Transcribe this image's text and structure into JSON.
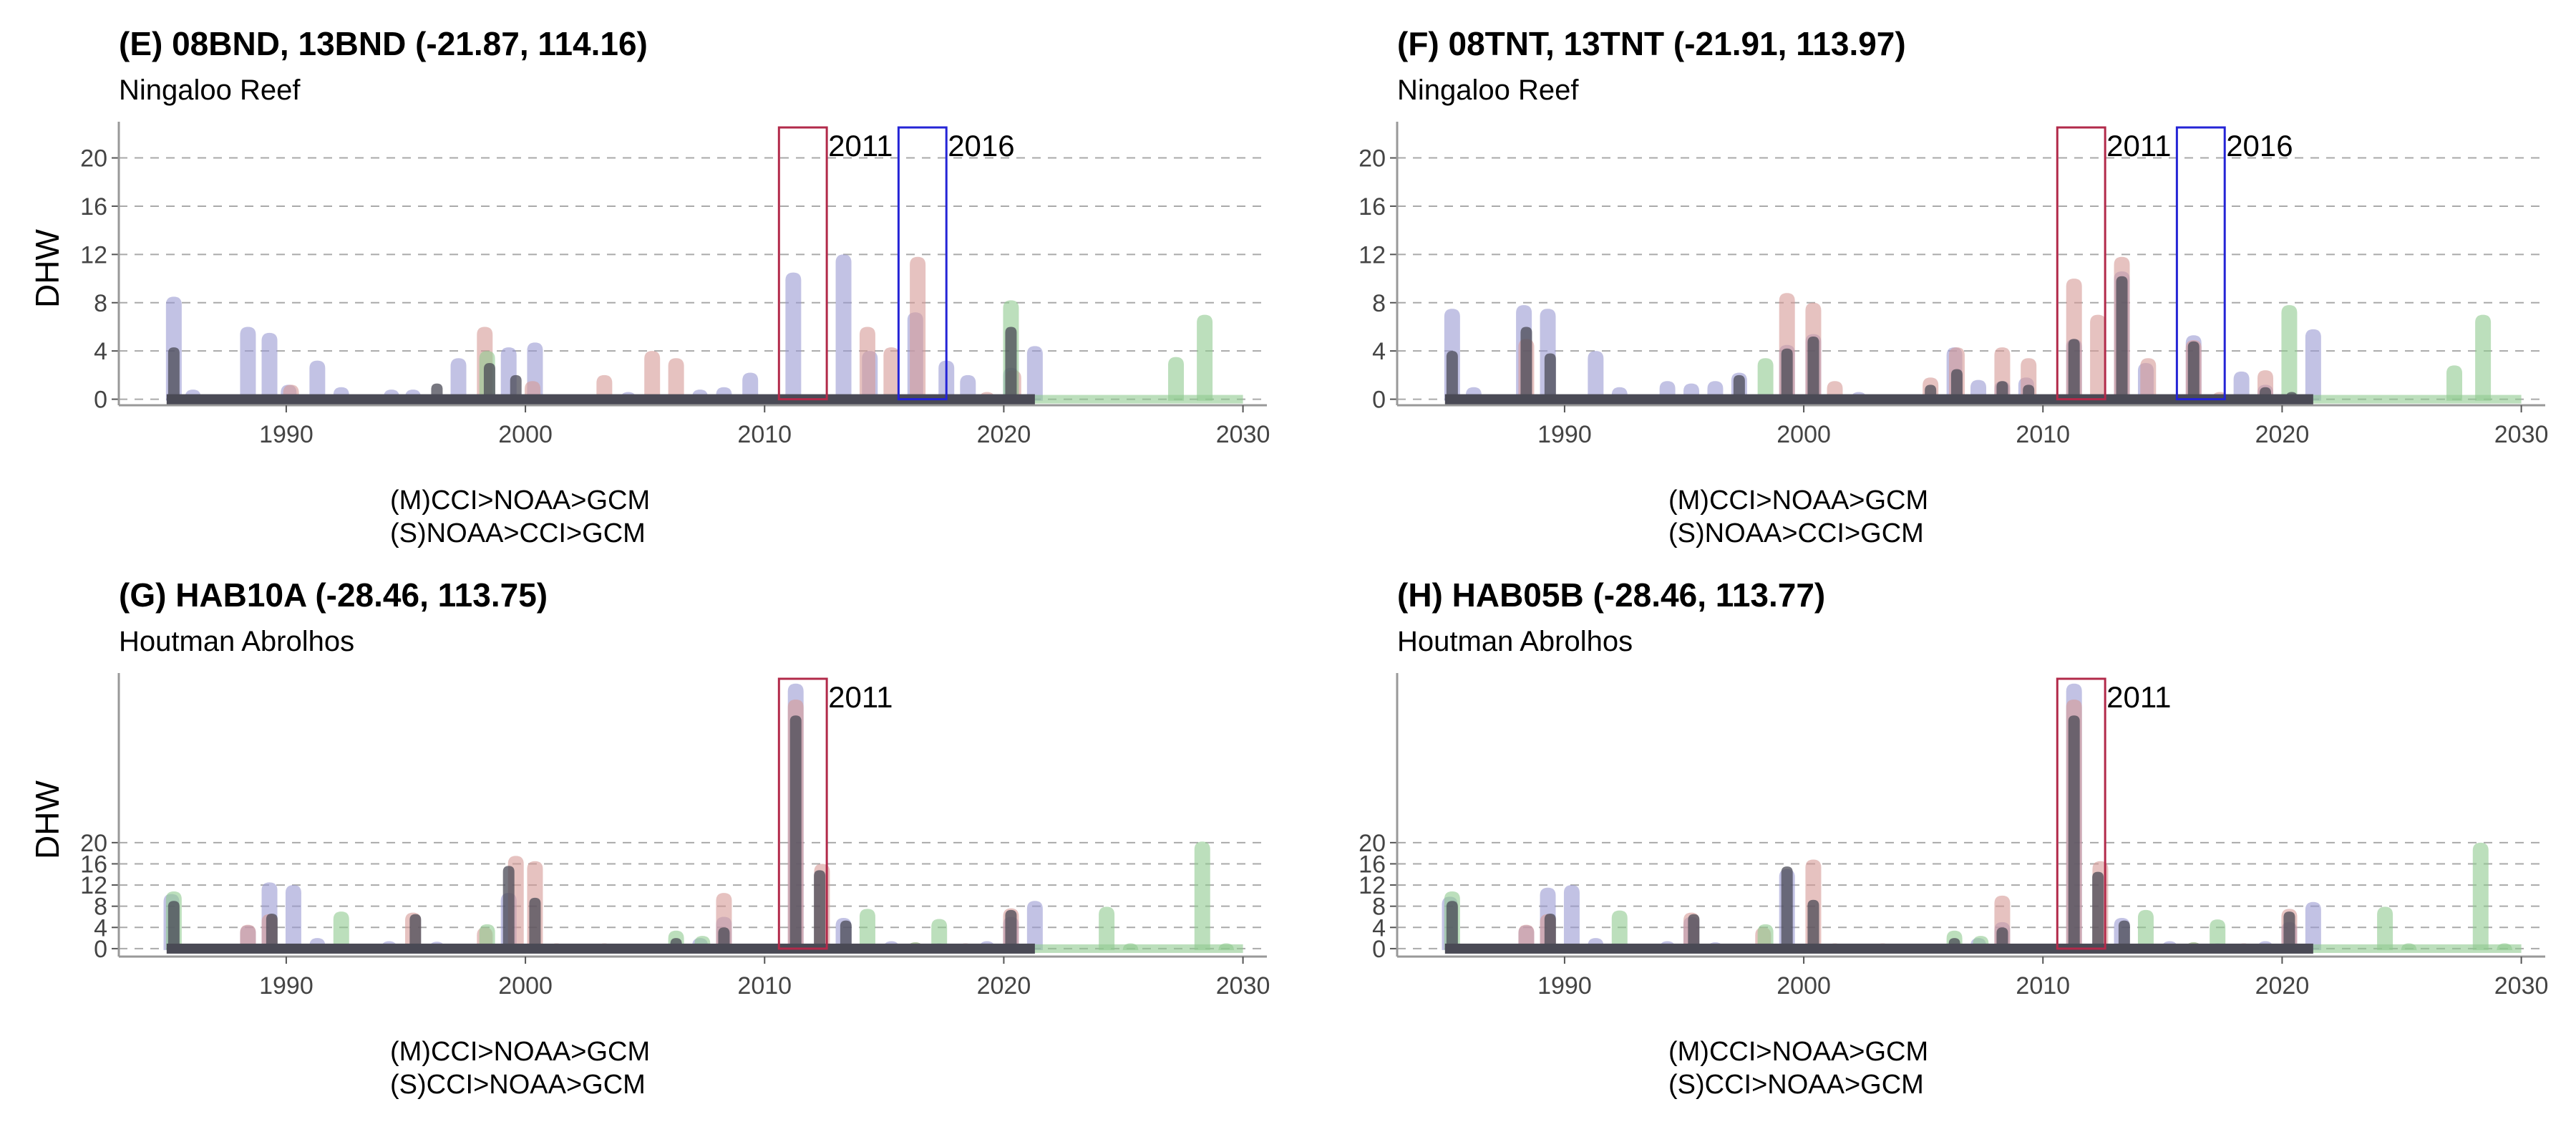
{
  "colors": {
    "cci": "#9a9ad2",
    "noaa": "#d69a96",
    "gcm": "#8fc98f",
    "core": "#4a4a55",
    "box2011": "#b22a4a",
    "box2016": "#2424d6",
    "grid": "#aaaaaa"
  },
  "chart_data": [
    {
      "panel": "E",
      "type": "area",
      "title": "(E) 08BND, 13BND (-21.87, 114.16)",
      "subtitle": "Ningaloo Reef",
      "ylabel": "DHW",
      "caption": [
        "(M)CCI>NOAA>GCM",
        "(S)NOAA>CCI>GCM"
      ],
      "xlim": [
        1983,
        2031
      ],
      "ylim": [
        -0.5,
        23
      ],
      "yticks": [
        0,
        4,
        8,
        12,
        16,
        20
      ],
      "xticks": [
        1990,
        2000,
        2010,
        2020,
        2030
      ],
      "highlights": [
        {
          "label": "2011",
          "start": 2010.6,
          "end": 2012.6,
          "color": "box2011"
        },
        {
          "label": "2016",
          "start": 2015.6,
          "end": 2017.6,
          "color": "box2016"
        }
      ],
      "series": [
        {
          "color": "cci",
          "values": [
            [
              1985.3,
              8.5
            ],
            [
              1986.1,
              0.8
            ],
            [
              1988.4,
              6
            ],
            [
              1989.3,
              5.5
            ],
            [
              1990.1,
              1.2
            ],
            [
              1991.3,
              3.2
            ],
            [
              1992.3,
              1
            ],
            [
              1994.4,
              0.8
            ],
            [
              1995.3,
              0.8
            ],
            [
              1997.2,
              3.4
            ],
            [
              1999.3,
              4.3
            ],
            [
              2000.4,
              4.7
            ],
            [
              2004.3,
              0.6
            ],
            [
              2007.3,
              0.8
            ],
            [
              2008.3,
              1
            ],
            [
              2009.4,
              2.2
            ],
            [
              2011.2,
              10.5
            ],
            [
              2013.3,
              12
            ],
            [
              2014.4,
              4
            ],
            [
              2016.3,
              7.2
            ],
            [
              2017.6,
              3.2
            ],
            [
              2018.5,
              2
            ],
            [
              2020.3,
              2.6
            ],
            [
              2021.3,
              4.4
            ]
          ]
        },
        {
          "color": "noaa",
          "values": [
            [
              1990.2,
              1.2
            ],
            [
              1998.3,
              6
            ],
            [
              2000.3,
              1.5
            ],
            [
              2003.3,
              2
            ],
            [
              2005.3,
              4
            ],
            [
              2006.3,
              3.4
            ],
            [
              2014.3,
              6
            ],
            [
              2015.3,
              4.3
            ],
            [
              2016.4,
              11.8
            ],
            [
              2019.3,
              0.6
            ],
            [
              2020.4,
              2.4
            ]
          ]
        },
        {
          "color": "gcm",
          "values": [
            [
              1998.4,
              4
            ],
            [
              2020.3,
              8.2
            ],
            [
              2027.2,
              3.5
            ],
            [
              2028.4,
              7
            ]
          ],
          "baseline_from": 2020.8
        },
        {
          "color": "core",
          "values": [
            [
              1985.3,
              4.3
            ],
            [
              1996.3,
              1.3
            ],
            [
              1998.5,
              3
            ],
            [
              1999.6,
              2
            ],
            [
              2020.3,
              6
            ]
          ]
        }
      ]
    },
    {
      "panel": "F",
      "type": "area",
      "title": "(F) 08TNT, 13TNT (-21.91, 113.97)",
      "subtitle": "Ningaloo Reef",
      "ylabel": "",
      "caption": [
        "(M)CCI>NOAA>GCM",
        "(S)NOAA>CCI>GCM"
      ],
      "xlim": [
        1983,
        2031
      ],
      "ylim": [
        -0.5,
        23
      ],
      "yticks": [
        0,
        4,
        8,
        12,
        16,
        20
      ],
      "xticks": [
        1990,
        2000,
        2010,
        2020,
        2030
      ],
      "highlights": [
        {
          "label": "2011",
          "start": 2010.6,
          "end": 2012.6,
          "color": "box2011"
        },
        {
          "label": "2016",
          "start": 2015.6,
          "end": 2017.6,
          "color": "box2016"
        }
      ],
      "series": [
        {
          "color": "cci",
          "values": [
            [
              1985.3,
              7.5
            ],
            [
              1986.2,
              1
            ],
            [
              1988.3,
              7.8
            ],
            [
              1989.3,
              7.5
            ],
            [
              1991.3,
              4
            ],
            [
              1992.3,
              1
            ],
            [
              1994.3,
              1.5
            ],
            [
              1995.3,
              1.3
            ],
            [
              1996.3,
              1.5
            ],
            [
              1997.3,
              2.2
            ],
            [
              1999.3,
              4.5
            ],
            [
              2000.4,
              5.4
            ],
            [
              2002.3,
              0.6
            ],
            [
              2006.3,
              4.3
            ],
            [
              2007.3,
              1.6
            ],
            [
              2008.3,
              1.5
            ],
            [
              2009.3,
              1.8
            ],
            [
              2011.3,
              5
            ],
            [
              2013.3,
              10.6
            ],
            [
              2014.3,
              3
            ],
            [
              2016.3,
              5.3
            ],
            [
              2018.3,
              2.3
            ],
            [
              2019.3,
              1.2
            ],
            [
              2021.3,
              5.8
            ]
          ]
        },
        {
          "color": "noaa",
          "values": [
            [
              1988.4,
              5
            ],
            [
              1999.3,
              8.8
            ],
            [
              2000.4,
              8
            ],
            [
              2001.3,
              1.5
            ],
            [
              2005.3,
              1.8
            ],
            [
              2006.4,
              4.3
            ],
            [
              2008.3,
              4.3
            ],
            [
              2009.4,
              3.4
            ],
            [
              2011.3,
              10
            ],
            [
              2012.3,
              7
            ],
            [
              2013.3,
              11.8
            ],
            [
              2014.4,
              3.4
            ],
            [
              2016.3,
              4.9
            ],
            [
              2017.4,
              0.6
            ],
            [
              2019.3,
              2.4
            ]
          ]
        },
        {
          "color": "gcm",
          "values": [
            [
              1998.4,
              3.4
            ],
            [
              2020.3,
              7.8
            ],
            [
              2027.2,
              2.8
            ],
            [
              2028.4,
              7
            ]
          ],
          "baseline_from": 2021
        },
        {
          "color": "core",
          "values": [
            [
              1985.3,
              4
            ],
            [
              1988.4,
              6
            ],
            [
              1989.4,
              3.8
            ],
            [
              1997.3,
              2
            ],
            [
              1999.3,
              4.2
            ],
            [
              2000.4,
              5.2
            ],
            [
              2005.3,
              1.2
            ],
            [
              2006.4,
              2.5
            ],
            [
              2008.3,
              1.5
            ],
            [
              2009.4,
              1.2
            ],
            [
              2011.3,
              5
            ],
            [
              2013.3,
              10.2
            ],
            [
              2016.3,
              4.8
            ],
            [
              2019.3,
              1
            ],
            [
              2020.4,
              0.6
            ]
          ]
        }
      ]
    },
    {
      "panel": "G",
      "type": "area",
      "title": "(G) HAB10A (-28.46, 113.75)",
      "subtitle": "Houtman Abrolhos",
      "ylabel": "DHW",
      "caption": [
        "(M)CCI>NOAA>GCM",
        "(S)CCI>NOAA>GCM"
      ],
      "xlim": [
        1983,
        2031
      ],
      "ylim": [
        -1.5,
        52
      ],
      "yticks": [
        0,
        4,
        8,
        12,
        16,
        20
      ],
      "xticks": [
        1990,
        2000,
        2010,
        2020,
        2030
      ],
      "highlights": [
        {
          "label": "2011",
          "start": 2010.6,
          "end": 2012.6,
          "color": "box2011"
        }
      ],
      "series": [
        {
          "color": "cci",
          "values": [
            [
              1985.2,
              10.3
            ],
            [
              1988.4,
              4.4
            ],
            [
              1989.3,
              12.5
            ],
            [
              1990.3,
              12
            ],
            [
              1991.3,
              2
            ],
            [
              1994.3,
              1.4
            ],
            [
              1996.3,
              1.3
            ],
            [
              1999.3,
              10.5
            ],
            [
              2005.3,
              0.5
            ],
            [
              2007.3,
              2
            ],
            [
              2008.3,
              6
            ],
            [
              2011.3,
              50
            ],
            [
              2013.3,
              5.8
            ],
            [
              2015.3,
              1.4
            ],
            [
              2017.3,
              1
            ],
            [
              2019.3,
              1.4
            ],
            [
              2020.3,
              6
            ],
            [
              2021.3,
              9
            ]
          ]
        },
        {
          "color": "noaa",
          "values": [
            [
              1988.4,
              4.5
            ],
            [
              1989.3,
              6.5
            ],
            [
              1995.3,
              6.8
            ],
            [
              1998.3,
              4
            ],
            [
              1999.6,
              17.5
            ],
            [
              2000.4,
              16.5
            ],
            [
              2001.3,
              1
            ],
            [
              2003.3,
              1
            ],
            [
              2008.3,
              10.5
            ],
            [
              2011.3,
              47
            ],
            [
              2012.4,
              16
            ],
            [
              2016.3,
              1.2
            ],
            [
              2018.4,
              1
            ],
            [
              2020.3,
              7.6
            ]
          ]
        },
        {
          "color": "gcm",
          "values": [
            [
              1985.3,
              10.8
            ],
            [
              1992.3,
              7
            ],
            [
              1998.4,
              4.6
            ],
            [
              2006.3,
              3.4
            ],
            [
              2007.4,
              2.4
            ],
            [
              2014.3,
              7.5
            ],
            [
              2016.3,
              1.2
            ],
            [
              2017.3,
              5.6
            ],
            [
              2024.3,
              7.9
            ],
            [
              2025.3,
              1
            ],
            [
              2028.3,
              20.2
            ],
            [
              2029.3,
              1
            ]
          ],
          "baseline_from": 2021
        },
        {
          "color": "core",
          "values": [
            [
              1985.3,
              9
            ],
            [
              1989.4,
              6.6
            ],
            [
              1995.4,
              6.5
            ],
            [
              1999.3,
              15.6
            ],
            [
              2000.4,
              9.6
            ],
            [
              2006.3,
              2
            ],
            [
              2008.3,
              4
            ],
            [
              2011.3,
              44
            ],
            [
              2012.3,
              14.8
            ],
            [
              2013.4,
              5.3
            ],
            [
              2020.3,
              7.3
            ]
          ]
        }
      ]
    },
    {
      "panel": "H",
      "type": "area",
      "title": "(H) HAB05B (-28.46, 113.77)",
      "subtitle": "Houtman Abrolhos",
      "ylabel": "",
      "caption": [
        "(M)CCI>NOAA>GCM",
        "(S)CCI>NOAA>GCM"
      ],
      "xlim": [
        1983,
        2031
      ],
      "ylim": [
        -1.5,
        52
      ],
      "yticks": [
        0,
        4,
        8,
        12,
        16,
        20
      ],
      "xticks": [
        1990,
        2000,
        2010,
        2020,
        2030
      ],
      "highlights": [
        {
          "label": "2011",
          "start": 2010.6,
          "end": 2012.6,
          "color": "box2011"
        }
      ],
      "series": [
        {
          "color": "cci",
          "values": [
            [
              1985.2,
              9.8
            ],
            [
              1988.4,
              4.4
            ],
            [
              1989.3,
              11.5
            ],
            [
              1990.3,
              12
            ],
            [
              1991.3,
              2
            ],
            [
              1994.3,
              1.4
            ],
            [
              1995.3,
              6
            ],
            [
              1996.3,
              1.2
            ],
            [
              1999.3,
              15
            ],
            [
              2005.3,
              0.5
            ],
            [
              2007.3,
              2
            ],
            [
              2008.3,
              5
            ],
            [
              2011.3,
              50
            ],
            [
              2013.3,
              5.8
            ],
            [
              2015.3,
              1.4
            ],
            [
              2017.3,
              1
            ],
            [
              2019.3,
              1.4
            ],
            [
              2020.3,
              5
            ],
            [
              2021.3,
              8.8
            ]
          ]
        },
        {
          "color": "noaa",
          "values": [
            [
              1988.4,
              4.5
            ],
            [
              1989.3,
              6.5
            ],
            [
              1995.3,
              6.8
            ],
            [
              1998.3,
              4
            ],
            [
              2000.4,
              16.8
            ],
            [
              2001.3,
              1
            ],
            [
              2003.3,
              1
            ],
            [
              2008.3,
              10
            ],
            [
              2011.3,
              47
            ],
            [
              2012.4,
              16.5
            ],
            [
              2016.3,
              1.2
            ],
            [
              2018.4,
              1
            ],
            [
              2020.3,
              7.5
            ]
          ]
        },
        {
          "color": "gcm",
          "values": [
            [
              1985.3,
              10.8
            ],
            [
              1992.3,
              7.2
            ],
            [
              1998.4,
              4.6
            ],
            [
              2006.3,
              3.4
            ],
            [
              2007.4,
              2.4
            ],
            [
              2014.3,
              7.3
            ],
            [
              2016.3,
              1.2
            ],
            [
              2017.3,
              5.5
            ],
            [
              2024.3,
              7.9
            ],
            [
              2025.3,
              1
            ],
            [
              2028.3,
              20
            ],
            [
              2029.3,
              1
            ]
          ],
          "baseline_from": 2021
        },
        {
          "color": "core",
          "values": [
            [
              1985.3,
              9
            ],
            [
              1989.4,
              6.6
            ],
            [
              1995.4,
              6.5
            ],
            [
              1999.3,
              15.5
            ],
            [
              2000.4,
              9.2
            ],
            [
              2006.3,
              2
            ],
            [
              2008.3,
              4
            ],
            [
              2011.3,
              44
            ],
            [
              2012.3,
              14.5
            ],
            [
              2013.4,
              5.3
            ],
            [
              2020.3,
              7
            ]
          ]
        }
      ]
    }
  ]
}
